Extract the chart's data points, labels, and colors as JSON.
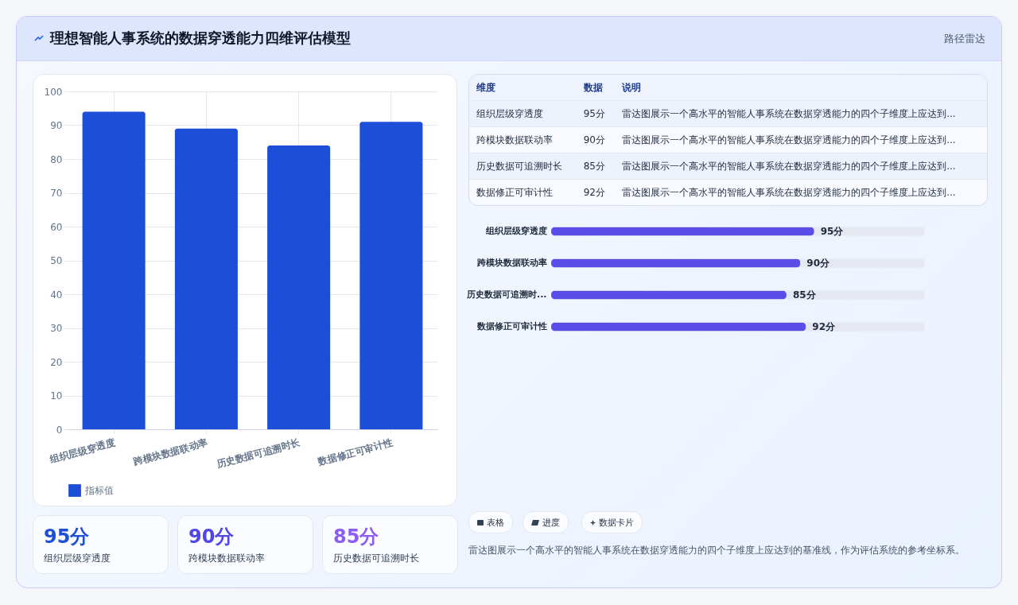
{
  "chart_data": [
    {
      "type": "bar",
      "categories": [
        "组织层级穿透度",
        "跨模块数据联动率",
        "历史数据可追溯时长",
        "数据修正可审计性"
      ],
      "series": [
        {
          "name": "指标值",
          "color": "#1d4ed8",
          "values": [
            94,
            89,
            84,
            91
          ]
        }
      ],
      "ylim": [
        0,
        100
      ],
      "yticks": [
        0,
        10,
        20,
        30,
        40,
        50,
        60,
        70,
        80,
        90,
        100
      ],
      "grid": true,
      "legend": "bottom"
    },
    {
      "type": "other",
      "annotations": [
        "维度",
        "数据",
        "说明",
        "组织层级穿透度",
        "95分",
        "雷达图展示一个高水平的智能人事系统在数据穿透能力的四个子维度上应达到...",
        "跨模块数据联动率",
        "90分",
        "雷达图展示一个高水平的智能人事系统在数据穿透能力的四个子维度上应达到...",
        "历史数据可追溯时长",
        "85分",
        "雷达图展示一个高水平的智能人事系统在数据穿透能力的四个子维度上应达到...",
        "数据修正可审计性",
        "92分",
        "雷达图展示一个高水平的智能人事系统在数据穿透能力的四个子维度上应达到..."
      ]
    },
    {
      "type": "bar",
      "orientation": "horizontal",
      "categories": [
        "组织层级穿透度",
        "跨模块数据联动率",
        "历史数据可追溯时...",
        "数据修正可审计性"
      ],
      "values": [
        95,
        90,
        85,
        92
      ],
      "value_labels": [
        "95分",
        "90分",
        "85分",
        "92分"
      ],
      "color": "#5b4ee8",
      "xlim": [
        0,
        135
      ],
      "tick_labels": "y"
    },
    {
      "type": "other",
      "title": "理想智能人事系统的数据穿透能力四维评估模型",
      "subtitle": "路径雷达"
    },
    {
      "type": "other",
      "annotations": [
        "95分",
        "组织层级穿透度",
        "90分",
        "跨模块数据联动率",
        "85分",
        "历史数据可追溯时长"
      ]
    },
    {
      "type": "other",
      "annotations": [
        "表格",
        "进度",
        "数据卡片",
        "雷达图展示一个高水平的智能人事系统在数据穿透能力的四个子维度上应达到的基准线，作为评估系统的参考坐标系。"
      ]
    }
  ]
}
